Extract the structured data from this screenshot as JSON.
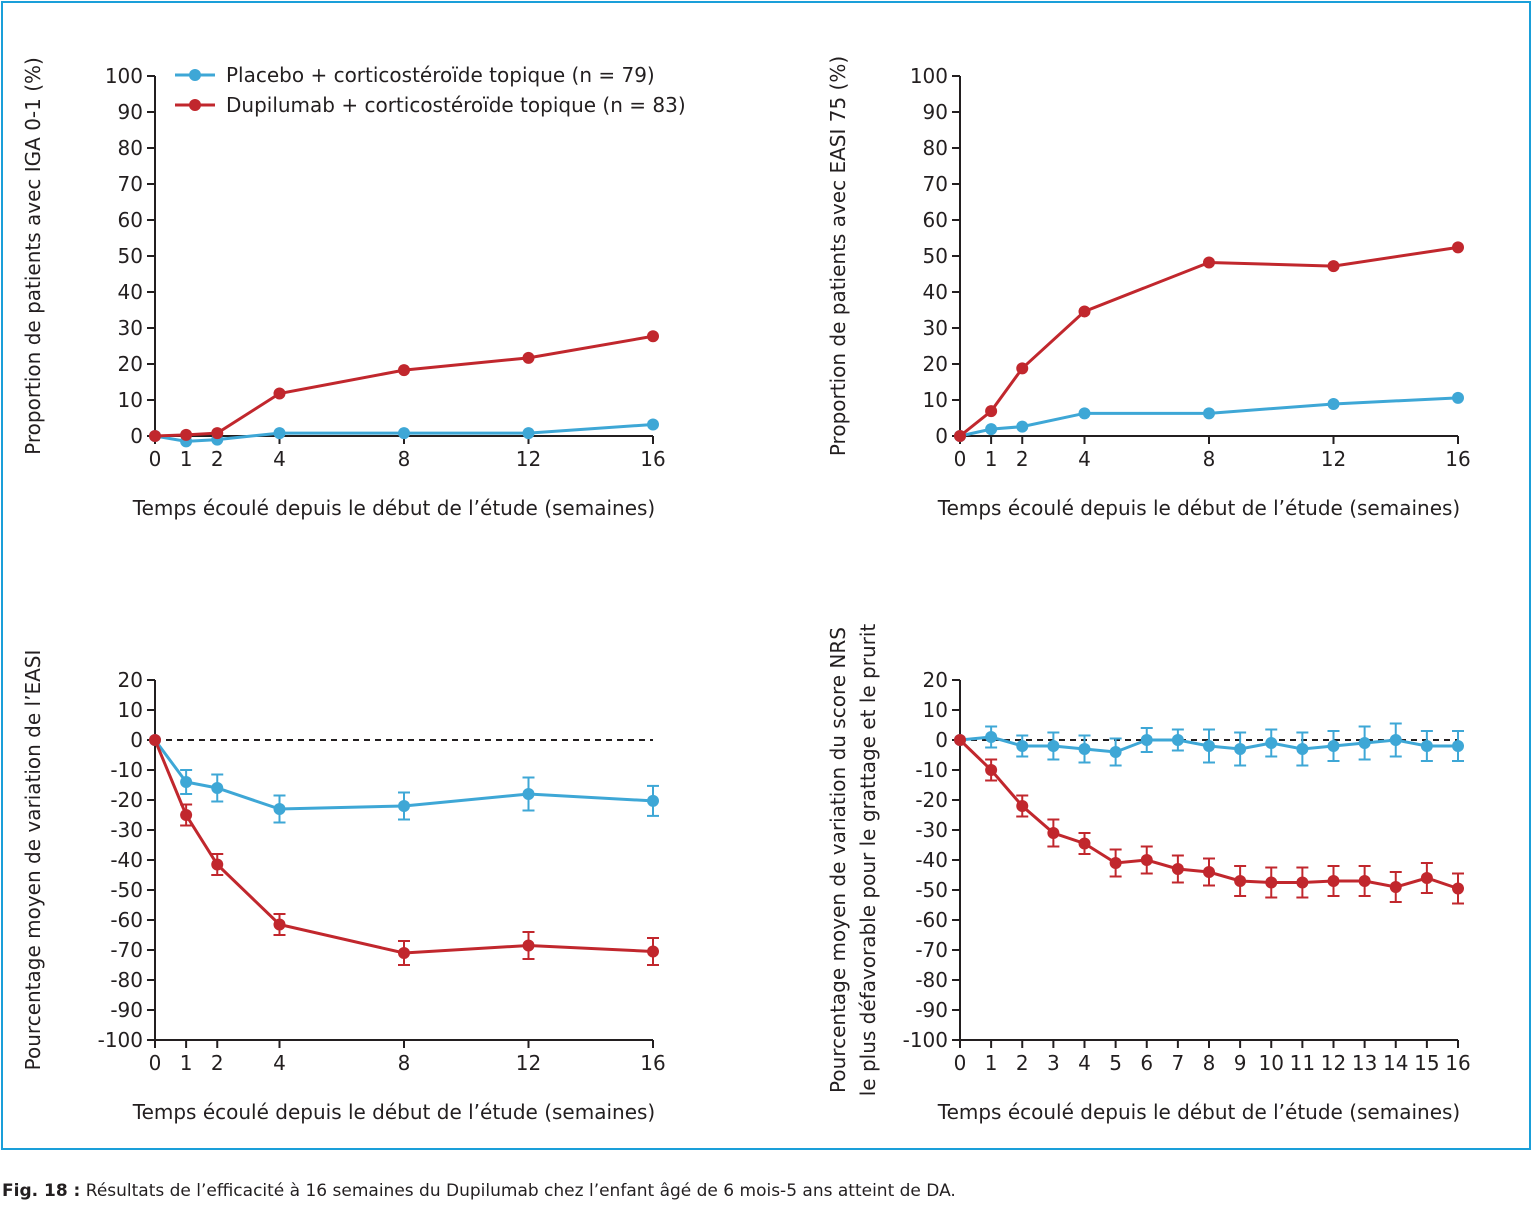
{
  "colors": {
    "frame": "#1a9fd9",
    "placebo": "#3ea7d6",
    "dupilumab": "#c1272d",
    "axis": "#231f20"
  },
  "caption": {
    "label": "Fig. 18 :",
    "text": "Résultats de l’efficacité à 16 semaines du Dupilumab chez l’enfant âgé de 6 mois-5 ans atteint de DA."
  },
  "chart_data": [
    {
      "type": "line",
      "ylabel": "Proportion de patients avec IGA 0-1 (%)",
      "xlabel": "Temps écoulé depuis le début de l’étude (semaines)",
      "ylim": [
        0,
        100
      ],
      "ystep": 10,
      "xticks": [
        0,
        1,
        2,
        4,
        8,
        12,
        16
      ],
      "xlim": [
        0,
        16
      ],
      "legend": {
        "placement": "top-left"
      },
      "series": [
        {
          "name": "Placebo + corticostéroïde topique (n = 79)",
          "color": "placebo",
          "x": [
            0,
            1,
            2,
            4,
            8,
            12,
            16
          ],
          "y": [
            0,
            -1.5,
            -1,
            0.8,
            0.8,
            0.8,
            3.2
          ]
        },
        {
          "name": "Dupilumab + corticostéroïde topique (n = 83)",
          "color": "dupilumab",
          "x": [
            0,
            1,
            2,
            4,
            8,
            12,
            16
          ],
          "y": [
            0,
            0.3,
            0.8,
            11.8,
            18.3,
            21.7,
            27.7
          ]
        }
      ]
    },
    {
      "type": "line",
      "ylabel": "Proportion de patients avec EASI 75 (%)",
      "xlabel": "Temps écoulé depuis le début de l’étude (semaines)",
      "ylim": [
        0,
        100
      ],
      "ystep": 10,
      "xticks": [
        0,
        1,
        2,
        4,
        8,
        12,
        16
      ],
      "xlim": [
        0,
        16
      ],
      "series": [
        {
          "color": "placebo",
          "x": [
            0,
            1,
            2,
            4,
            8,
            12,
            16
          ],
          "y": [
            0,
            1.9,
            2.6,
            6.3,
            6.3,
            8.9,
            10.6
          ]
        },
        {
          "color": "dupilumab",
          "x": [
            0,
            1,
            2,
            4,
            8,
            12,
            16
          ],
          "y": [
            0,
            6.9,
            18.8,
            34.6,
            48.2,
            47.2,
            52.4
          ]
        }
      ]
    },
    {
      "type": "line",
      "ylabel": "Pourcentage moyen de variation de l’EASI",
      "xlabel": "Temps écoulé depuis le début de l’étude (semaines)",
      "ylim": [
        -100,
        20
      ],
      "ystep": 10,
      "refline": 0,
      "xticks": [
        0,
        1,
        2,
        4,
        8,
        12,
        16
      ],
      "xlim": [
        0,
        16
      ],
      "series": [
        {
          "color": "placebo",
          "x": [
            0,
            1,
            2,
            4,
            8,
            12,
            16
          ],
          "y": [
            0,
            -14,
            -16,
            -23,
            -22,
            -18,
            -20.3
          ],
          "err": [
            0,
            4,
            4.5,
            4.5,
            4.5,
            5.5,
            5
          ]
        },
        {
          "color": "dupilumab",
          "x": [
            0,
            1,
            2,
            4,
            8,
            12,
            16
          ],
          "y": [
            0,
            -25,
            -41.5,
            -61.5,
            -71,
            -68.5,
            -70.5
          ],
          "err": [
            0,
            3.5,
            3.5,
            3.5,
            4,
            4.5,
            4.5
          ]
        }
      ]
    },
    {
      "type": "line",
      "ylabel": [
        "Pourcentage moyen de variation du score NRS",
        "le plus défavorable pour le grattage et le prurit"
      ],
      "xlabel": "Temps écoulé depuis le début de l’étude (semaines)",
      "ylim": [
        -100,
        20
      ],
      "ystep": 10,
      "refline": 0,
      "xticks": [
        0,
        1,
        2,
        3,
        4,
        5,
        6,
        7,
        8,
        9,
        10,
        11,
        12,
        13,
        14,
        15,
        16
      ],
      "xlim": [
        0,
        16
      ],
      "series": [
        {
          "color": "placebo",
          "x": [
            0,
            1,
            2,
            3,
            4,
            5,
            6,
            7,
            8,
            9,
            10,
            11,
            12,
            13,
            14,
            15,
            16
          ],
          "y": [
            0,
            1,
            -2,
            -2,
            -3,
            -4,
            0,
            0,
            -2,
            -3,
            -1,
            -3,
            -2,
            -1,
            0,
            -2,
            -2
          ],
          "err": [
            0,
            3.5,
            3.5,
            4.5,
            4.5,
            4.5,
            4,
            3.5,
            5.5,
            5.5,
            4.5,
            5.5,
            5,
            5.5,
            5.5,
            5,
            5
          ]
        },
        {
          "color": "dupilumab",
          "x": [
            0,
            1,
            2,
            3,
            4,
            5,
            6,
            7,
            8,
            9,
            10,
            11,
            12,
            13,
            14,
            15,
            16
          ],
          "y": [
            0,
            -10,
            -22,
            -31,
            -34.5,
            -41,
            -40,
            -43,
            -44,
            -47,
            -47.5,
            -47.5,
            -47,
            -47,
            -49,
            -46,
            -49.5
          ],
          "err": [
            0,
            3.5,
            3.5,
            4.5,
            3.5,
            4.5,
            4.5,
            4.5,
            4.5,
            5,
            5,
            5,
            5,
            5,
            5,
            5,
            5
          ]
        }
      ]
    }
  ]
}
